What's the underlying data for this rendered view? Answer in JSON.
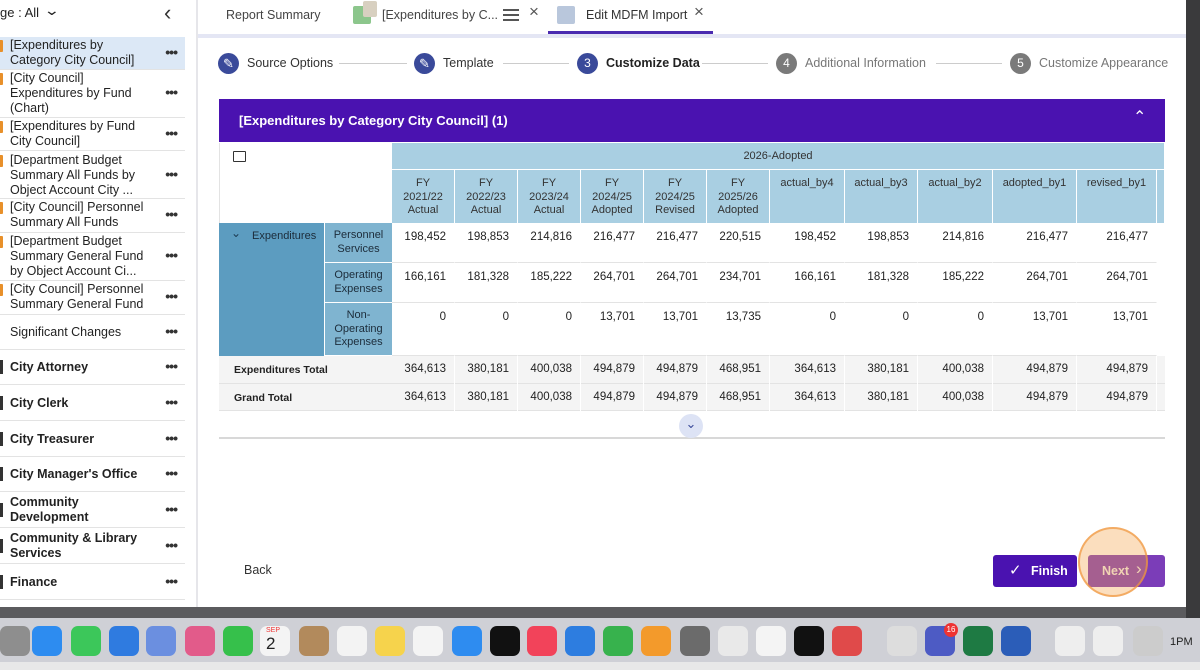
{
  "sidebar": {
    "filter": "ge : All",
    "reports": [
      "[Expenditures by Category City Council]",
      "[City Council] Expenditures by Fund (Chart)",
      "[Expenditures by Fund City Council]",
      "[Department Budget Summary All Funds by Object Account City ...",
      "[City Council] Personnel Summary All Funds",
      "[Department Budget Summary General Fund by Object Account Ci...",
      "[City Council] Personnel Summary General Fund",
      "Significant Changes"
    ],
    "departments": [
      "City Attorney",
      "City Clerk",
      "City Treasurer",
      "City Manager's Office",
      "Community Development",
      "Community & Library Services",
      "Finance"
    ]
  },
  "tabs": [
    "Report Summary",
    "[Expenditures by C...",
    "Edit MDFM Import"
  ],
  "steps": [
    {
      "label": "Source Options"
    },
    {
      "label": "Template"
    },
    {
      "number": "3",
      "label": "Customize Data"
    },
    {
      "number": "4",
      "label": "Additional Information"
    },
    {
      "number": "5",
      "label": "Customize Appearance"
    }
  ],
  "panel": {
    "title": "[Expenditures by Category City Council] (1)"
  },
  "table": {
    "group_header": "2026-Adopted",
    "columns": [
      "FY\n2021/22\nActual",
      "FY\n2022/23\nActual",
      "FY\n2023/24\nActual",
      "FY\n2024/25\nAdopted",
      "FY\n2024/25\nRevised",
      "FY\n2025/26\nAdopted",
      "actual_by4",
      "actual_by3",
      "actual_by2",
      "adopted_by1",
      "revised_by1"
    ],
    "row_group": "Expenditures",
    "rows": [
      {
        "label": "Personnel\nServices",
        "values": [
          "198,452",
          "198,853",
          "214,816",
          "216,477",
          "216,477",
          "220,515",
          "198,452",
          "198,853",
          "214,816",
          "216,477",
          "216,477"
        ]
      },
      {
        "label": "Operating\nExpenses",
        "values": [
          "166,161",
          "181,328",
          "185,222",
          "264,701",
          "264,701",
          "234,701",
          "166,161",
          "181,328",
          "185,222",
          "264,701",
          "264,701"
        ]
      },
      {
        "label": "Non-\nOperating\nExpenses",
        "values": [
          "0",
          "0",
          "0",
          "13,701",
          "13,701",
          "13,735",
          "0",
          "0",
          "0",
          "13,701",
          "13,701"
        ]
      }
    ],
    "totals": [
      {
        "label": "Expenditures Total",
        "values": [
          "364,613",
          "380,181",
          "400,038",
          "494,879",
          "494,879",
          "468,951",
          "364,613",
          "380,181",
          "400,038",
          "494,879",
          "494,879"
        ]
      },
      {
        "label": "Grand Total",
        "values": [
          "364,613",
          "380,181",
          "400,038",
          "494,879",
          "494,879",
          "468,951",
          "364,613",
          "380,181",
          "400,038",
          "494,879",
          "494,879"
        ]
      }
    ]
  },
  "buttons": {
    "back": "Back",
    "finish": "Finish",
    "next": "Next"
  },
  "dock": {
    "calendar_month": "SEP",
    "calendar_day": "2",
    "badge": "16",
    "clock": "1PM"
  }
}
